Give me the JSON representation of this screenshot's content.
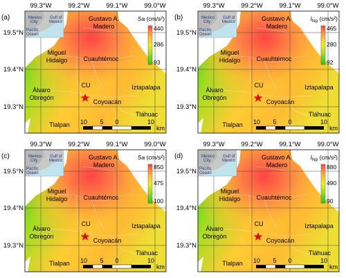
{
  "colors": {
    "scale": [
      "#22cc22",
      "#88dd22",
      "#eeee22",
      "#ffbb33",
      "#ff8844",
      "#ff4444"
    ],
    "star": "#dd1111",
    "inset_land": "#c8c8c8",
    "inset_water": "#bfe4ee",
    "grid": "#555555"
  },
  "axes": {
    "lon_ticks": [
      "99.3°W",
      "99.2°W",
      "99.1°W",
      "99.0°W"
    ],
    "lat_ticks": [
      "19.5°N",
      "19.4°N",
      "19.3°N"
    ]
  },
  "places": {
    "gam": "Gustavo A.\nMadero",
    "gam1": "Gustavo A.",
    "gam2": "Madero",
    "mh1": "Miguel",
    "mh2": "Hidalgo",
    "cuauh": "Cuauhtémoc",
    "ao1": "Álvaro",
    "ao2": "Obregón",
    "cu": "CU",
    "coyo": "Coyoacán",
    "izta": "Iztapalapa",
    "tlahuac": "Tláhuac",
    "tlalpan": "Tlalpan"
  },
  "inset": {
    "mexico_city": [
      "Mexico",
      "City"
    ],
    "gulf": [
      "Gulf of",
      "Mexico"
    ],
    "pacific": [
      "Pacific",
      "Ocean"
    ]
  },
  "scalebar": {
    "ticks": [
      "10",
      "5",
      "0",
      "10"
    ],
    "unit": "km"
  },
  "panels": [
    {
      "label": "(a)",
      "var": "Sa",
      "sub": "",
      "unit": "(cm/s²)",
      "max": "440",
      "mid": "286",
      "min": "93"
    },
    {
      "label": "(b)",
      "var": "I",
      "sub": "Np",
      "unit": "(cm/s²)",
      "max": "465",
      "mid": "280",
      "min": "92"
    },
    {
      "label": "(c)",
      "var": "Sa",
      "sub": "",
      "unit": "(cm/s²)",
      "max": "850",
      "mid": "475",
      "min": "100"
    },
    {
      "label": "(d)",
      "var": "I",
      "sub": "Np",
      "unit": "(cm/s²)",
      "max": "880",
      "mid": "490",
      "min": "90"
    }
  ]
}
